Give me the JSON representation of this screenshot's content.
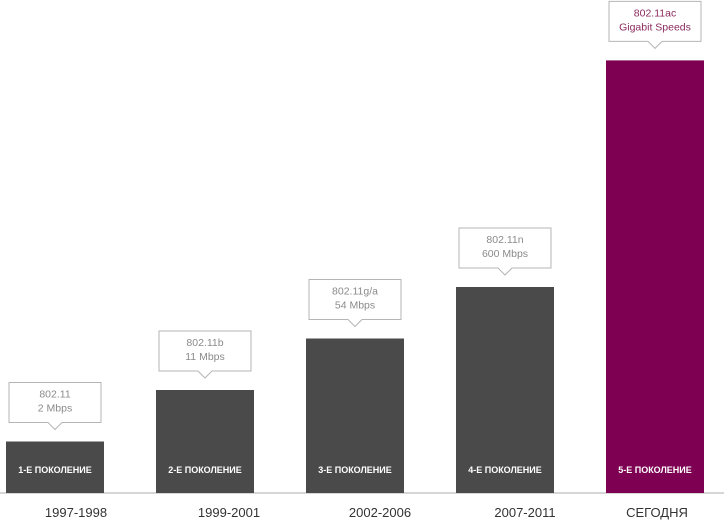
{
  "chart_data": {
    "type": "bar",
    "title": "",
    "xlabel": "",
    "ylabel": "",
    "categories": [
      "1997-1998",
      "1999-2001",
      "2002-2006",
      "2007-2011",
      "СЕГОДНЯ"
    ],
    "values": [
      1,
      2,
      3,
      4,
      8.4
    ],
    "bar_labels": [
      "1-Е ПОКОЛЕНИЕ",
      "2-Е ПОКОЛЕНИЕ",
      "3-Е ПОКОЛЕНИЕ",
      "4-Е ПОКОЛЕНИЕ",
      "5-Е ПОКОЛЕНИЕ"
    ],
    "annotations": [
      [
        "802.11",
        "2 Mbps"
      ],
      [
        "802.11b",
        "11  Mbps"
      ],
      [
        "802.11g/a",
        "54 Mbps"
      ],
      [
        "802.11n",
        "600 Mbps"
      ],
      [
        "802.11ac",
        "Gigabit Speeds"
      ]
    ],
    "bar_colors": [
      "#4a4a4a",
      "#4a4a4a",
      "#4a4a4a",
      "#4a4a4a",
      "#7d0052"
    ],
    "annotation_colors": [
      "#8a8a8a",
      "#8a8a8a",
      "#8a8a8a",
      "#8a8a8a",
      "#8a2a5e"
    ],
    "axis_color": "#c8c8c8",
    "grid": false
  }
}
